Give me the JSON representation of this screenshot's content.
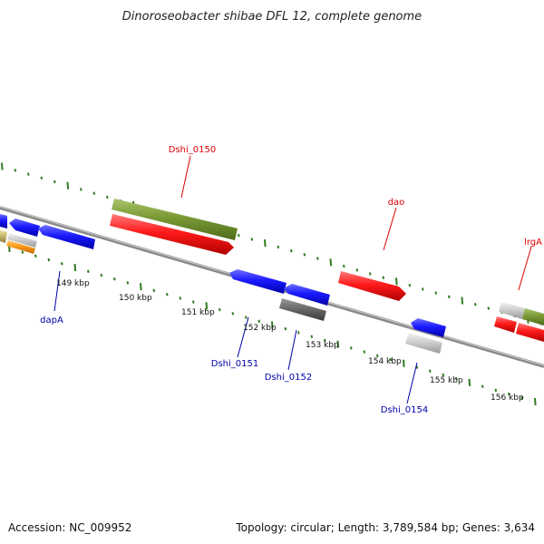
{
  "title": "Dinoroseobacter shibae DFL 12, complete genome",
  "footer": {
    "accession": "Accession: NC_009952",
    "summary": "Topology: circular; Length: 3,789,584 bp; Genes: 3,634"
  },
  "colors": {
    "backbone": "#8a8a8a",
    "tick": "#2e7d1e",
    "forward_label": "#dd0000",
    "reverse_label": "#0000aa"
  },
  "tick_labels": [
    "149 kbp",
    "150 kbp",
    "151 kbp",
    "152 kbp",
    "153 kbp",
    "154 kbp",
    "155 kbp",
    "156 kbp"
  ],
  "genes_forward": [
    {
      "name": "Dshi_0150",
      "color": "green"
    },
    {
      "name": "dao",
      "color": "red"
    },
    {
      "name": "lrgA",
      "color": "red"
    }
  ],
  "genes_reverse": [
    {
      "name": "dapA",
      "color": "blue"
    },
    {
      "name": "Dshi_0151",
      "color": "blue"
    },
    {
      "name": "Dshi_0152",
      "color": "gray"
    },
    {
      "name": "Dshi_0154",
      "color": "blue"
    }
  ]
}
